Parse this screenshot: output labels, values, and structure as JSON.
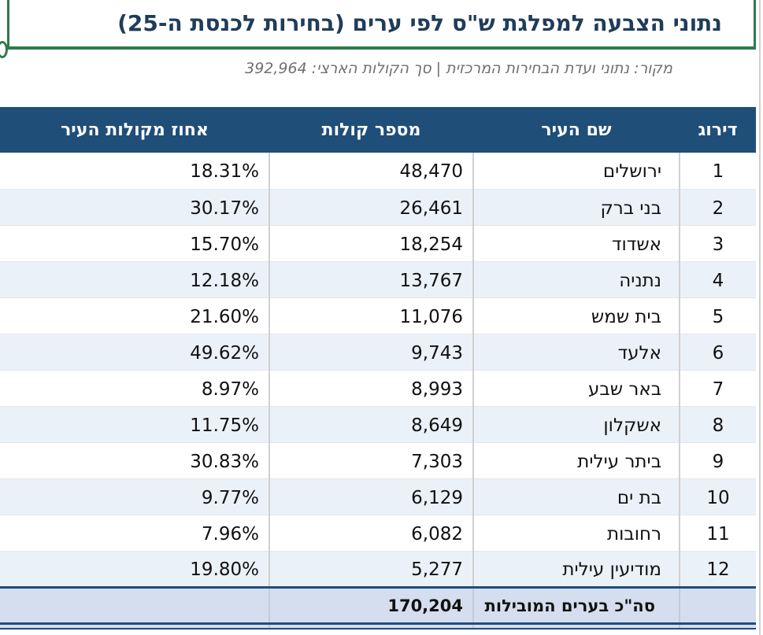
{
  "title": "נתוני הצבעה למפלגת ש\"ס לפי ערים (בחירות לכנסת ה-25)",
  "subtitle": "מקור: נתוני ועדת הבחירות המרכזית | סך הקולות הארצי: 392,964",
  "columns": {
    "rank": "דירוג",
    "city": "שם העיר",
    "votes": "מספר קולות",
    "pct": "אחוז מקולות העיר"
  },
  "rows": [
    {
      "rank": "1",
      "city": "ירושלים",
      "votes": "48,470",
      "pct": "18.31%"
    },
    {
      "rank": "2",
      "city": "בני ברק",
      "votes": "26,461",
      "pct": "30.17%"
    },
    {
      "rank": "3",
      "city": "אשדוד",
      "votes": "18,254",
      "pct": "15.70%"
    },
    {
      "rank": "4",
      "city": "נתניה",
      "votes": "13,767",
      "pct": "12.18%"
    },
    {
      "rank": "5",
      "city": "בית שמש",
      "votes": "11,076",
      "pct": "21.60%"
    },
    {
      "rank": "6",
      "city": "אלעד",
      "votes": "9,743",
      "pct": "49.62%"
    },
    {
      "rank": "7",
      "city": "באר שבע",
      "votes": "8,993",
      "pct": "8.97%"
    },
    {
      "rank": "8",
      "city": "אשקלון",
      "votes": "8,649",
      "pct": "11.75%"
    },
    {
      "rank": "9",
      "city": "ביתר עילית",
      "votes": "7,303",
      "pct": "30.83%"
    },
    {
      "rank": "10",
      "city": "בת ים",
      "votes": "6,129",
      "pct": "9.77%"
    },
    {
      "rank": "11",
      "city": "רחובות",
      "votes": "6,082",
      "pct": "7.96%"
    },
    {
      "rank": "12",
      "city": "מודיעין עילית",
      "votes": "5,277",
      "pct": "19.80%"
    }
  ],
  "total": {
    "label": "סה\"כ בערים המובילות",
    "votes": "170,204"
  },
  "colors": {
    "header_bg": "#1f4e79",
    "title_border": "#2f7a4a",
    "title_text": "#1f3c5a",
    "alt_row": "#ebf1f8",
    "total_bg": "#d5deee"
  }
}
